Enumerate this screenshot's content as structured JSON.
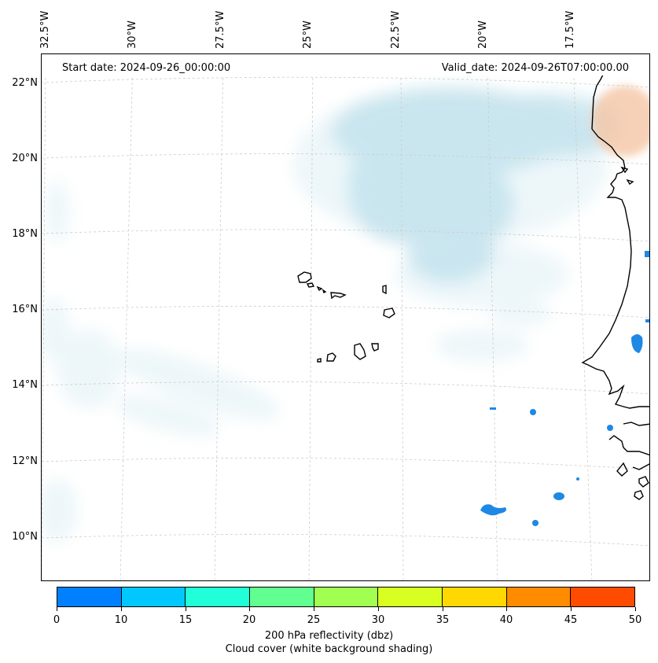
{
  "map": {
    "start_date": "Start date: 2024-09-26_00:00:00",
    "valid_date": "Valid_date: 2024-09-26T07:00:00.00",
    "lon_labels": [
      "32.5°W",
      "30°W",
      "27.5°W",
      "25°W",
      "22.5°W",
      "20°W",
      "17.5°W"
    ],
    "lat_labels": [
      "22°N",
      "20°N",
      "18°N",
      "16°N",
      "14°N",
      "12°N",
      "10°N"
    ],
    "cloud_color": "#add8e6",
    "reflectivity_color": "#1e88e5",
    "land_warm_color": "#f5c6a5"
  },
  "colorbar": {
    "ticks": [
      "0",
      "10",
      "15",
      "20",
      "25",
      "30",
      "35",
      "40",
      "45",
      "50"
    ],
    "colors": [
      "#0080ff",
      "#00c8ff",
      "#20ffd8",
      "#60ff90",
      "#a0ff50",
      "#d8ff20",
      "#ffd800",
      "#ff8c00",
      "#ff4b00"
    ],
    "label_line1": "200 hPa reflectivity (dbz)",
    "label_line2": "Cloud cover (white background shading)"
  }
}
